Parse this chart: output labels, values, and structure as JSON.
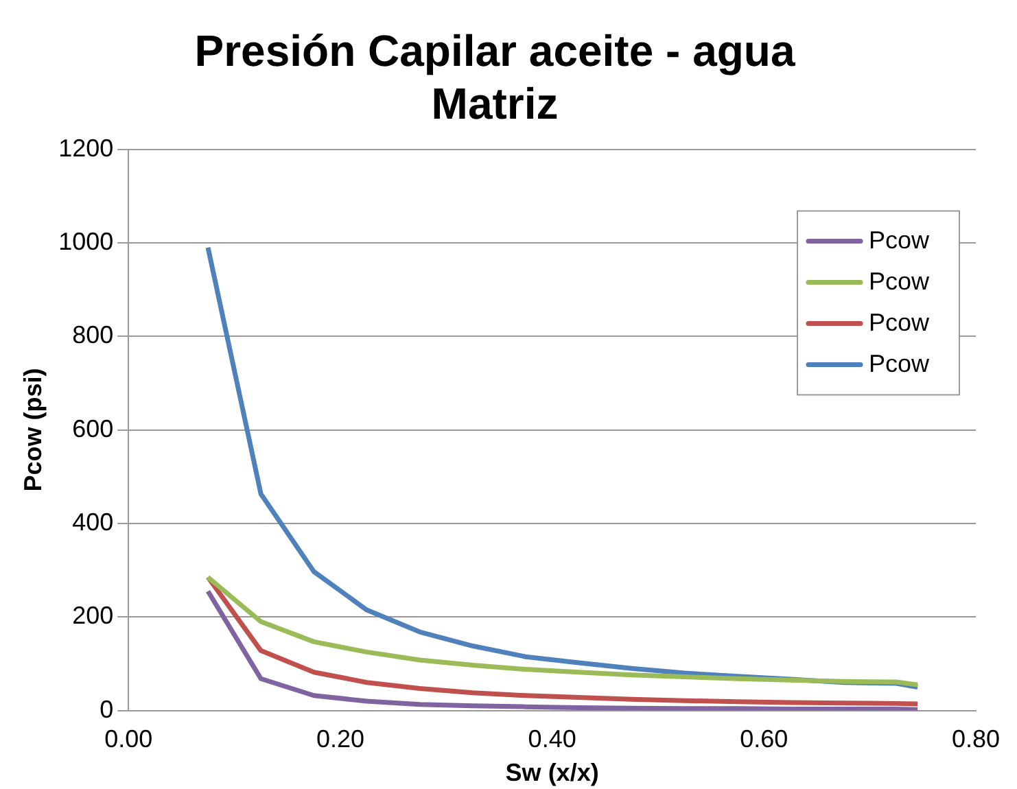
{
  "chart_data": {
    "type": "line",
    "title": [
      "Presión Capilar aceite - agua",
      "Matriz"
    ],
    "xlabel": "Sw (x/x)",
    "ylabel": "Pcow (psi)",
    "x": [
      0.075,
      0.125,
      0.175,
      0.225,
      0.275,
      0.325,
      0.375,
      0.425,
      0.475,
      0.525,
      0.575,
      0.625,
      0.675,
      0.725,
      0.745
    ],
    "series": [
      {
        "name": "Pcow",
        "color": "#8064a2",
        "values": [
          255,
          68,
          32,
          20,
          13,
          10,
          8,
          6,
          5,
          4,
          4,
          3,
          3,
          3,
          2
        ]
      },
      {
        "name": "Pcow",
        "color": "#9bbb59",
        "values": [
          285,
          190,
          147,
          125,
          108,
          97,
          88,
          82,
          76,
          72,
          68,
          65,
          62,
          61,
          55
        ]
      },
      {
        "name": "Pcow",
        "color": "#c0504d",
        "values": [
          285,
          128,
          82,
          60,
          47,
          38,
          32,
          28,
          24,
          21,
          19,
          17,
          16,
          15,
          14
        ]
      },
      {
        "name": "Pcow",
        "color": "#4f81bd",
        "values": [
          990,
          463,
          297,
          215,
          168,
          138,
          115,
          102,
          90,
          80,
          73,
          67,
          60,
          58,
          50
        ]
      }
    ],
    "xlim": [
      0,
      0.8
    ],
    "xticks": [
      {
        "value": 0,
        "label": "0.00"
      },
      {
        "value": 0.2,
        "label": "0.20"
      },
      {
        "value": 0.4,
        "label": "0.40"
      },
      {
        "value": 0.6,
        "label": "0.60"
      },
      {
        "value": 0.8,
        "label": "0.80"
      }
    ],
    "ylim": [
      0,
      1200
    ],
    "yticks": [
      0,
      200,
      400,
      600,
      800,
      1000,
      1200
    ],
    "grid": "y",
    "legend": "right",
    "marker": "none",
    "line_style": "solid"
  }
}
